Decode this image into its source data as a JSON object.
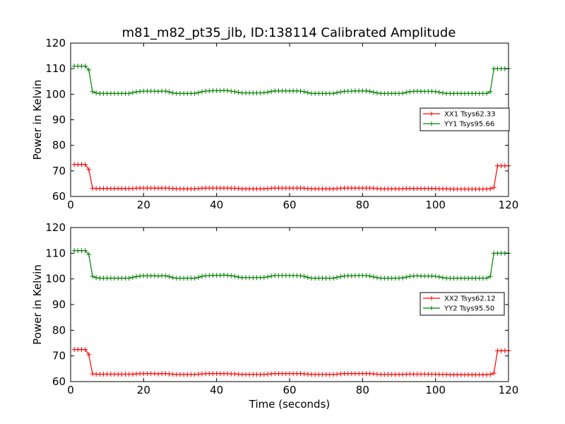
{
  "title": "m81_m82_pt35_jlb, ID:138114 Calibrated Amplitude",
  "colors": {
    "XX": "#ff0000",
    "YY": "#008000",
    "axes": "#000000",
    "background": "#ffffff"
  },
  "chart_data": [
    {
      "type": "line",
      "ylabel": "Power in Kelvin",
      "xlabel": "",
      "xlim": [
        0,
        120
      ],
      "ylim": [
        60,
        120
      ],
      "xticks": [
        "0",
        "20",
        "40",
        "60",
        "80",
        "100",
        "120"
      ],
      "yticks": [
        "60",
        "70",
        "80",
        "90",
        "100",
        "110",
        "120"
      ],
      "legend_position": "right",
      "x": [
        1,
        2,
        3,
        4,
        5,
        6,
        7,
        8,
        9,
        10,
        11,
        12,
        13,
        14,
        15,
        16,
        17,
        18,
        19,
        20,
        21,
        22,
        23,
        24,
        25,
        26,
        27,
        28,
        29,
        30,
        31,
        32,
        33,
        34,
        35,
        36,
        37,
        38,
        39,
        40,
        41,
        42,
        43,
        44,
        45,
        46,
        47,
        48,
        49,
        50,
        51,
        52,
        53,
        54,
        55,
        56,
        57,
        58,
        59,
        60,
        61,
        62,
        63,
        64,
        65,
        66,
        67,
        68,
        69,
        70,
        71,
        72,
        73,
        74,
        75,
        76,
        77,
        78,
        79,
        80,
        81,
        82,
        83,
        84,
        85,
        86,
        87,
        88,
        89,
        90,
        91,
        92,
        93,
        94,
        95,
        96,
        97,
        98,
        99,
        100,
        101,
        102,
        103,
        104,
        105,
        106,
        107,
        108,
        109,
        110,
        111,
        112,
        113,
        114,
        115,
        116,
        117,
        118,
        119,
        120
      ],
      "series": [
        {
          "name": "XX1 Tsys62.33",
          "color": "#ff0000",
          "values": [
            72.5,
            72.5,
            72.5,
            72.5,
            70.5,
            63.2,
            63.1,
            63.1,
            63.1,
            63.1,
            63.1,
            63.1,
            63.1,
            63.1,
            63.1,
            63.1,
            63.1,
            63.2,
            63.3,
            63.3,
            63.3,
            63.3,
            63.3,
            63.2,
            63.3,
            63.3,
            63.2,
            63.1,
            63.0,
            63.0,
            63.0,
            63.0,
            63.0,
            63.0,
            63.1,
            63.2,
            63.3,
            63.3,
            63.3,
            63.3,
            63.3,
            63.3,
            63.3,
            63.2,
            63.2,
            63.1,
            63.0,
            63.0,
            63.0,
            63.0,
            63.0,
            63.0,
            63.0,
            63.1,
            63.2,
            63.3,
            63.3,
            63.3,
            63.3,
            63.3,
            63.3,
            63.3,
            63.3,
            63.2,
            63.1,
            63.0,
            63.0,
            63.0,
            63.0,
            63.0,
            63.0,
            63.0,
            63.1,
            63.2,
            63.3,
            63.3,
            63.3,
            63.3,
            63.3,
            63.3,
            63.3,
            63.3,
            63.2,
            63.1,
            63.0,
            63.0,
            63.0,
            63.0,
            63.0,
            63.0,
            63.0,
            63.1,
            63.1,
            63.1,
            63.1,
            63.1,
            63.1,
            63.1,
            63.1,
            63.1,
            63.0,
            63.0,
            63.0,
            62.9,
            62.9,
            62.9,
            62.9,
            62.9,
            62.9,
            62.9,
            62.9,
            62.9,
            62.9,
            62.9,
            63.0,
            63.5,
            72.0,
            72.0,
            72.0,
            72.0
          ]
        },
        {
          "name": "YY1 Tsys95.66",
          "color": "#008000",
          "values": [
            111.0,
            111.0,
            111.0,
            111.0,
            109.5,
            101.0,
            100.5,
            100.3,
            100.3,
            100.3,
            100.3,
            100.3,
            100.3,
            100.3,
            100.3,
            100.3,
            100.6,
            100.9,
            101.1,
            101.2,
            101.2,
            101.2,
            101.2,
            101.1,
            101.2,
            101.2,
            100.9,
            100.5,
            100.3,
            100.3,
            100.3,
            100.3,
            100.3,
            100.3,
            100.6,
            101.0,
            101.2,
            101.3,
            101.4,
            101.4,
            101.4,
            101.5,
            101.4,
            101.2,
            101.0,
            100.7,
            100.5,
            100.5,
            100.5,
            100.5,
            100.5,
            100.5,
            100.6,
            100.8,
            101.1,
            101.3,
            101.3,
            101.3,
            101.3,
            101.3,
            101.3,
            101.3,
            101.2,
            101.0,
            100.6,
            100.3,
            100.3,
            100.3,
            100.3,
            100.3,
            100.3,
            100.3,
            100.6,
            100.9,
            101.1,
            101.2,
            101.2,
            101.3,
            101.3,
            101.3,
            101.3,
            101.1,
            100.8,
            100.5,
            100.3,
            100.3,
            100.3,
            100.3,
            100.3,
            100.3,
            100.4,
            100.7,
            101.0,
            101.1,
            101.2,
            101.1,
            101.1,
            101.1,
            101.1,
            101.0,
            100.8,
            100.5,
            100.3,
            100.3,
            100.3,
            100.3,
            100.3,
            100.3,
            100.3,
            100.3,
            100.3,
            100.3,
            100.3,
            100.3,
            101.0,
            110.0,
            110.0,
            110.0,
            110.0,
            110.0
          ]
        }
      ]
    },
    {
      "type": "line",
      "ylabel": "Power in Kelvin",
      "xlabel": "Time (seconds)",
      "xlim": [
        0,
        120
      ],
      "ylim": [
        60,
        120
      ],
      "xticks": [
        "0",
        "20",
        "40",
        "60",
        "80",
        "100",
        "120"
      ],
      "yticks": [
        "60",
        "70",
        "80",
        "90",
        "100",
        "110",
        "120"
      ],
      "legend_position": "right",
      "x": [
        1,
        2,
        3,
        4,
        5,
        6,
        7,
        8,
        9,
        10,
        11,
        12,
        13,
        14,
        15,
        16,
        17,
        18,
        19,
        20,
        21,
        22,
        23,
        24,
        25,
        26,
        27,
        28,
        29,
        30,
        31,
        32,
        33,
        34,
        35,
        36,
        37,
        38,
        39,
        40,
        41,
        42,
        43,
        44,
        45,
        46,
        47,
        48,
        49,
        50,
        51,
        52,
        53,
        54,
        55,
        56,
        57,
        58,
        59,
        60,
        61,
        62,
        63,
        64,
        65,
        66,
        67,
        68,
        69,
        70,
        71,
        72,
        73,
        74,
        75,
        76,
        77,
        78,
        79,
        80,
        81,
        82,
        83,
        84,
        85,
        86,
        87,
        88,
        89,
        90,
        91,
        92,
        93,
        94,
        95,
        96,
        97,
        98,
        99,
        100,
        101,
        102,
        103,
        104,
        105,
        106,
        107,
        108,
        109,
        110,
        111,
        112,
        113,
        114,
        115,
        116,
        117,
        118,
        119,
        120
      ],
      "series": [
        {
          "name": "XX2 Tsys62.12",
          "color": "#ff0000",
          "values": [
            72.5,
            72.5,
            72.5,
            72.5,
            70.5,
            63.0,
            62.9,
            62.9,
            62.9,
            62.9,
            62.9,
            62.9,
            62.9,
            62.9,
            62.9,
            62.9,
            62.9,
            63.0,
            63.1,
            63.1,
            63.1,
            63.1,
            63.1,
            63.0,
            63.1,
            63.1,
            63.0,
            62.9,
            62.8,
            62.8,
            62.8,
            62.8,
            62.8,
            62.8,
            62.9,
            63.0,
            63.1,
            63.1,
            63.1,
            63.1,
            63.1,
            63.1,
            63.1,
            63.0,
            63.0,
            62.9,
            62.8,
            62.8,
            62.8,
            62.8,
            62.8,
            62.8,
            62.8,
            62.9,
            63.0,
            63.1,
            63.1,
            63.1,
            63.1,
            63.1,
            63.1,
            63.1,
            63.1,
            63.0,
            62.9,
            62.8,
            62.8,
            62.8,
            62.8,
            62.8,
            62.8,
            62.8,
            62.9,
            63.0,
            63.1,
            63.1,
            63.1,
            63.1,
            63.1,
            63.1,
            63.1,
            63.1,
            63.0,
            62.9,
            62.8,
            62.8,
            62.8,
            62.8,
            62.8,
            62.8,
            62.8,
            62.9,
            62.9,
            62.9,
            62.9,
            62.9,
            62.9,
            62.9,
            62.9,
            62.9,
            62.8,
            62.8,
            62.8,
            62.7,
            62.7,
            62.7,
            62.7,
            62.7,
            62.7,
            62.7,
            62.7,
            62.7,
            62.7,
            62.7,
            62.8,
            63.3,
            72.0,
            72.0,
            72.0,
            72.0
          ]
        },
        {
          "name": "YY2 Tsys95.50",
          "color": "#008000",
          "values": [
            111.0,
            111.0,
            111.0,
            111.0,
            109.5,
            101.0,
            100.5,
            100.3,
            100.3,
            100.3,
            100.3,
            100.3,
            100.3,
            100.3,
            100.3,
            100.3,
            100.6,
            100.9,
            101.1,
            101.2,
            101.2,
            101.2,
            101.2,
            101.1,
            101.2,
            101.2,
            100.9,
            100.5,
            100.3,
            100.3,
            100.3,
            100.3,
            100.3,
            100.3,
            100.6,
            101.0,
            101.2,
            101.3,
            101.4,
            101.4,
            101.4,
            101.5,
            101.4,
            101.2,
            101.0,
            100.7,
            100.5,
            100.5,
            100.5,
            100.5,
            100.5,
            100.5,
            100.6,
            100.8,
            101.1,
            101.3,
            101.3,
            101.3,
            101.3,
            101.3,
            101.3,
            101.3,
            101.2,
            101.0,
            100.6,
            100.3,
            100.3,
            100.3,
            100.3,
            100.3,
            100.3,
            100.3,
            100.6,
            100.9,
            101.1,
            101.2,
            101.2,
            101.3,
            101.3,
            101.3,
            101.3,
            101.1,
            100.8,
            100.5,
            100.3,
            100.3,
            100.3,
            100.3,
            100.3,
            100.3,
            100.4,
            100.7,
            101.0,
            101.1,
            101.2,
            101.1,
            101.1,
            101.1,
            101.1,
            101.0,
            100.8,
            100.5,
            100.3,
            100.3,
            100.3,
            100.3,
            100.3,
            100.3,
            100.3,
            100.3,
            100.3,
            100.3,
            100.3,
            100.3,
            101.0,
            110.0,
            110.0,
            110.0,
            110.0,
            110.0
          ]
        }
      ]
    }
  ]
}
